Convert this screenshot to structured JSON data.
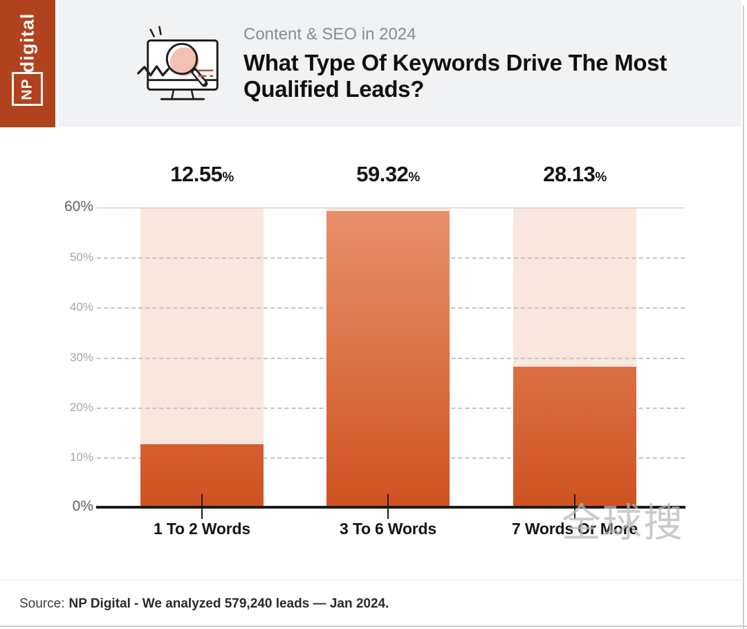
{
  "brand": {
    "np_label": "NP",
    "digital_label": "digital"
  },
  "header": {
    "kicker": "Content & SEO in 2024",
    "title_line1": "What Type Of Keywords Drive The Most",
    "title_line2": "Qualified Leads?"
  },
  "chart_data": {
    "type": "bar",
    "title": "What Type Of Keywords Drive The Most Qualified Leads?",
    "subtitle": "Content & SEO in 2024",
    "categories": [
      "1 To 2 Words",
      "3 To 6 Words",
      "7 Words Or More"
    ],
    "values": [
      12.55,
      59.32,
      28.13
    ],
    "value_labels": [
      "12.55",
      "59.32",
      "28.13"
    ],
    "unit": "%",
    "xlabel": "",
    "ylabel": "",
    "ylim": [
      0,
      60
    ],
    "yticks": [
      "60%",
      "50%",
      "40%",
      "30%",
      "20%",
      "10%",
      "0%"
    ],
    "grid": "horizontal dashed gridlines at 10-50%, solid line at 60%",
    "legend": "none",
    "bar_background_note": "each bar sits on a light pink track reaching 60%",
    "colors": {
      "bar_fill_top": "#e8916c",
      "bar_fill_bottom": "#cf5220",
      "bar_track": "#f8e6df",
      "axis": "#1b1b1b",
      "gridline": "#c4c4c4"
    }
  },
  "watermark": "全球搜",
  "footer": {
    "source_prefix": "Source:",
    "source_text": "NP Digital - We analyzed 579,240 leads — Jan 2024."
  },
  "colors": {
    "brand_orange": "#b0421e",
    "header_bg": "#f1f2f4",
    "kicker_gray": "#878c91",
    "title_black": "#101010"
  }
}
